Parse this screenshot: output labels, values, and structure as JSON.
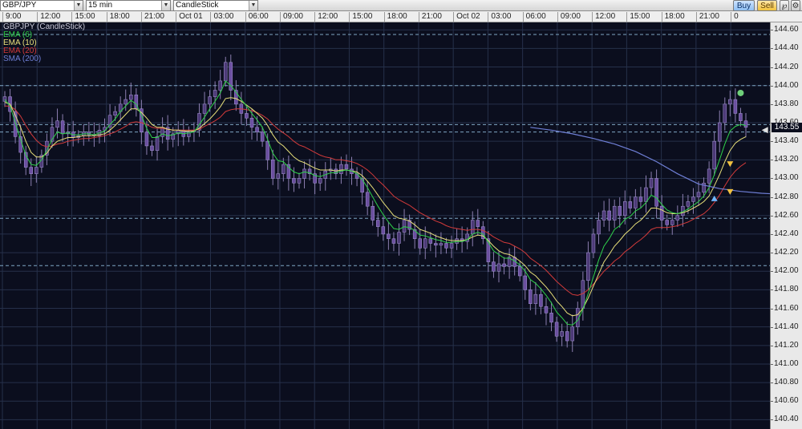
{
  "toolbar": {
    "symbol": "GBP/JPY",
    "interval": "15 min",
    "chart_style": "CandleStick",
    "buy_label": "Buy",
    "sell_label": "Sell",
    "tool_icons": [
      "pin-icon",
      "settings-icon"
    ]
  },
  "time_axis": {
    "labels": [
      "9:00",
      "12:00",
      "15:00",
      "18:00",
      "21:00",
      "Oct 01",
      "03:00",
      "06:00",
      "09:00",
      "12:00",
      "15:00",
      "18:00",
      "21:00",
      "Oct 02",
      "03:00",
      "06:00",
      "09:00",
      "12:00",
      "15:00",
      "18:00",
      "21:00",
      "0"
    ]
  },
  "legend": {
    "title": "GBPJPY (CandleStick)",
    "items": [
      {
        "label": "EMA (6)",
        "color": "#2fd14a"
      },
      {
        "label": "EMA (10)",
        "color": "#e8e07a"
      },
      {
        "label": "EMA (20)",
        "color": "#d23a3a"
      },
      {
        "label": "SMA (200)",
        "color": "#6f7fd6"
      }
    ]
  },
  "price_axis": {
    "ticks": [
      "144.60",
      "144.40",
      "144.20",
      "144.00",
      "143.80",
      "143.60",
      "143.40",
      "143.20",
      "143.00",
      "142.80",
      "142.60",
      "142.40",
      "142.20",
      "142.00",
      "141.80",
      "141.60",
      "141.40",
      "141.20",
      "141.00",
      "140.80",
      "140.60",
      "140.40"
    ],
    "current_price": "143.55"
  },
  "colors": {
    "background": "#0b0e1e",
    "grid": "#26304a",
    "candle": "#6b4fa0",
    "ema6": "#2fd14a",
    "ema10": "#e8e07a",
    "ema20": "#d23a3a",
    "sma200": "#6f7fd6",
    "hline": "#7fa6c4",
    "marker_up": "#6fb7ff",
    "marker_down": "#f0c040",
    "marker_high": "#6fcf7a"
  },
  "chart_data": {
    "type": "candlestick",
    "title": "GBPJPY (CandleStick)",
    "ylim": [
      140.3,
      144.68
    ],
    "close": [
      143.88,
      143.72,
      143.45,
      143.28,
      143.12,
      143.05,
      143.12,
      143.25,
      143.4,
      143.55,
      143.62,
      143.48,
      143.5,
      143.44,
      143.46,
      143.5,
      143.47,
      143.46,
      143.52,
      143.55,
      143.68,
      143.72,
      143.8,
      143.85,
      143.9,
      143.75,
      143.5,
      143.35,
      143.3,
      143.45,
      143.55,
      143.42,
      143.48,
      143.52,
      143.45,
      143.5,
      143.52,
      143.7,
      143.8,
      143.88,
      143.95,
      144.05,
      144.25,
      143.95,
      143.8,
      143.7,
      143.65,
      143.55,
      143.5,
      143.4,
      143.2,
      143.0,
      143.05,
      143.15,
      143.0,
      142.95,
      143.0,
      143.1,
      143.05,
      142.95,
      143.0,
      143.08,
      143.1,
      143.05,
      143.15,
      143.1,
      143.05,
      143.0,
      142.85,
      142.7,
      142.55,
      142.48,
      142.4,
      142.35,
      142.3,
      142.42,
      142.55,
      142.45,
      142.35,
      142.25,
      142.35,
      142.3,
      142.28,
      142.3,
      142.25,
      142.3,
      142.35,
      142.32,
      142.4,
      142.55,
      142.48,
      142.35,
      142.1,
      142.0,
      142.08,
      142.05,
      142.15,
      142.05,
      141.95,
      141.8,
      141.65,
      141.75,
      141.62,
      141.55,
      141.45,
      141.3,
      141.35,
      141.25,
      141.4,
      141.6,
      141.9,
      142.2,
      142.4,
      142.55,
      142.65,
      142.55,
      142.7,
      142.6,
      142.75,
      142.68,
      142.8,
      142.75,
      142.9,
      143.0,
      142.7,
      142.55,
      142.5,
      142.55,
      142.6,
      142.7,
      142.75,
      142.8,
      142.85,
      142.95,
      143.1,
      143.4,
      143.6,
      143.8,
      143.85,
      143.7,
      143.62,
      143.55
    ],
    "ema_6": [
      143.85,
      143.78,
      143.6,
      143.42,
      143.25,
      143.15,
      143.14,
      143.2,
      143.3,
      143.42,
      143.5,
      143.48,
      143.49,
      143.47,
      143.47,
      143.48,
      143.48,
      143.47,
      143.49,
      143.51,
      143.58,
      143.64,
      143.72,
      143.78,
      143.84,
      143.8,
      143.68,
      143.54,
      143.44,
      143.44,
      143.48,
      143.46,
      143.47,
      143.49,
      143.48,
      143.49,
      143.5,
      143.58,
      143.66,
      143.75,
      143.83,
      143.92,
      144.05,
      144.0,
      143.93,
      143.85,
      143.78,
      143.7,
      143.63,
      143.55,
      143.42,
      143.27,
      143.19,
      143.18,
      143.12,
      143.07,
      143.05,
      143.07,
      143.06,
      143.03,
      143.02,
      143.04,
      143.06,
      143.06,
      143.08,
      143.09,
      143.08,
      143.05,
      142.99,
      142.9,
      142.8,
      142.7,
      142.61,
      142.53,
      142.46,
      142.45,
      142.48,
      142.47,
      142.44,
      142.39,
      142.38,
      142.36,
      142.34,
      142.33,
      142.31,
      142.31,
      142.32,
      142.32,
      142.34,
      142.4,
      142.42,
      142.4,
      142.31,
      142.22,
      142.18,
      142.14,
      142.14,
      142.11,
      142.07,
      142.0,
      141.91,
      141.87,
      141.81,
      141.74,
      141.66,
      141.56,
      141.5,
      141.43,
      141.42,
      141.47,
      141.59,
      141.76,
      141.94,
      142.12,
      142.27,
      142.35,
      142.45,
      142.49,
      142.56,
      142.59,
      142.65,
      142.68,
      142.74,
      142.82,
      142.79,
      142.72,
      142.66,
      142.63,
      142.62,
      142.64,
      142.67,
      142.71,
      142.75,
      142.81,
      142.9,
      143.04,
      143.2,
      143.37,
      143.51,
      143.56,
      143.58,
      143.57
    ],
    "ema_10": [
      143.82,
      143.8,
      143.68,
      143.55,
      143.4,
      143.28,
      143.23,
      143.23,
      143.27,
      143.35,
      143.4,
      143.42,
      143.44,
      143.44,
      143.45,
      143.46,
      143.46,
      143.46,
      143.47,
      143.48,
      143.52,
      143.57,
      143.63,
      143.69,
      143.75,
      143.75,
      143.71,
      143.65,
      143.58,
      143.55,
      143.55,
      143.53,
      143.52,
      143.52,
      143.51,
      143.51,
      143.51,
      143.54,
      143.59,
      143.64,
      143.7,
      143.77,
      143.86,
      143.87,
      143.86,
      143.83,
      143.79,
      143.75,
      143.7,
      143.65,
      143.57,
      143.47,
      143.39,
      143.35,
      143.29,
      143.23,
      143.19,
      143.17,
      143.14,
      143.11,
      143.09,
      143.09,
      143.09,
      143.08,
      143.09,
      143.09,
      143.08,
      143.07,
      143.03,
      142.97,
      142.9,
      142.82,
      142.74,
      142.67,
      142.6,
      142.57,
      142.56,
      142.54,
      142.5,
      142.45,
      142.43,
      142.41,
      142.38,
      142.36,
      142.34,
      142.33,
      142.33,
      142.33,
      142.34,
      142.37,
      142.39,
      142.38,
      142.33,
      142.27,
      142.22,
      142.19,
      142.18,
      142.15,
      142.11,
      142.06,
      141.99,
      141.95,
      141.89,
      141.83,
      141.76,
      141.68,
      141.62,
      141.55,
      141.52,
      141.53,
      141.6,
      141.71,
      141.84,
      141.97,
      142.1,
      142.18,
      142.27,
      142.33,
      142.4,
      142.45,
      142.51,
      142.55,
      142.61,
      142.68,
      142.68,
      142.66,
      142.63,
      142.62,
      142.62,
      142.63,
      142.65,
      142.68,
      142.71,
      142.75,
      142.81,
      142.92,
      143.04,
      143.18,
      143.3,
      143.38,
      143.42,
      143.45
    ],
    "ema_20": [
      143.78,
      143.78,
      143.74,
      143.67,
      143.57,
      143.48,
      143.41,
      143.36,
      143.34,
      143.35,
      143.37,
      143.38,
      143.4,
      143.41,
      143.42,
      143.43,
      143.43,
      143.44,
      143.45,
      143.46,
      143.48,
      143.5,
      143.53,
      143.56,
      143.6,
      143.61,
      143.6,
      143.58,
      143.55,
      143.54,
      143.54,
      143.53,
      143.52,
      143.52,
      143.52,
      143.52,
      143.52,
      143.53,
      143.56,
      143.59,
      143.62,
      143.66,
      143.72,
      143.74,
      143.75,
      143.75,
      143.74,
      143.73,
      143.71,
      143.68,
      143.64,
      143.58,
      143.53,
      143.49,
      143.45,
      143.4,
      143.36,
      143.34,
      143.31,
      143.28,
      143.25,
      143.23,
      143.22,
      143.2,
      143.2,
      143.19,
      143.18,
      143.16,
      143.13,
      143.09,
      143.04,
      142.98,
      142.93,
      142.87,
      142.81,
      142.77,
      142.74,
      142.71,
      142.67,
      142.63,
      142.6,
      142.57,
      142.54,
      142.52,
      142.49,
      142.47,
      142.46,
      142.45,
      142.44,
      142.45,
      142.45,
      142.44,
      142.41,
      142.37,
      142.34,
      142.31,
      142.3,
      142.27,
      142.24,
      142.2,
      142.14,
      142.1,
      142.06,
      142.01,
      141.95,
      141.89,
      141.84,
      141.79,
      141.75,
      141.74,
      141.76,
      141.8,
      141.86,
      141.93,
      142.0,
      142.05,
      142.11,
      142.15,
      142.21,
      142.25,
      142.3,
      142.34,
      142.39,
      142.45,
      142.47,
      142.47,
      142.47,
      142.48,
      142.49,
      142.51,
      142.53,
      142.56,
      142.59,
      142.62,
      142.67,
      142.74,
      142.82,
      142.92,
      143.01,
      143.08,
      143.13,
      143.17
    ],
    "sma_200": [
      {
        "i": 100,
        "v": 143.55
      },
      {
        "i": 104,
        "v": 143.52
      },
      {
        "i": 108,
        "v": 143.48
      },
      {
        "i": 112,
        "v": 143.43
      },
      {
        "i": 116,
        "v": 143.37
      },
      {
        "i": 120,
        "v": 143.29
      },
      {
        "i": 124,
        "v": 143.18
      },
      {
        "i": 128,
        "v": 143.05
      },
      {
        "i": 132,
        "v": 142.94
      },
      {
        "i": 136,
        "v": 142.89
      },
      {
        "i": 140,
        "v": 142.86
      },
      {
        "i": 144,
        "v": 142.84
      },
      {
        "i": 147,
        "v": 142.83
      }
    ],
    "horizontal_lines": [
      144.55,
      144.0,
      143.58,
      143.5,
      142.57,
      142.06
    ],
    "markers": [
      {
        "i": 140,
        "v": 143.92,
        "kind": "high"
      },
      {
        "i": 138,
        "v": 143.15,
        "kind": "down"
      },
      {
        "i": 138,
        "v": 142.85,
        "kind": "down"
      },
      {
        "i": 135,
        "v": 142.78,
        "kind": "up"
      },
      {
        "i": 144,
        "v": 143.52,
        "kind": "arrow"
      }
    ]
  }
}
